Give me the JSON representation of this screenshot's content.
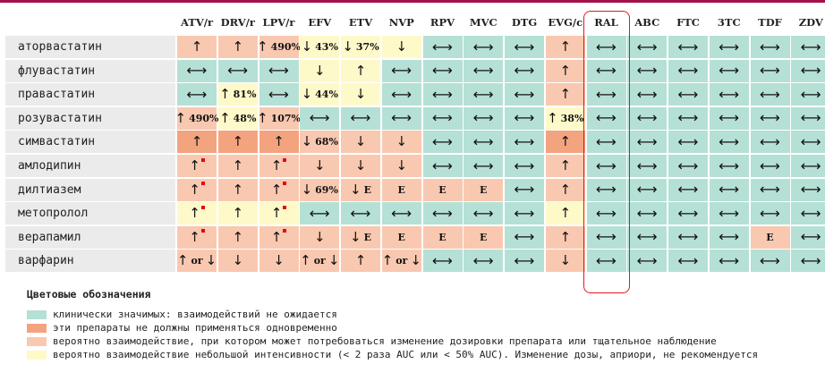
{
  "columns": [
    "ATV/r",
    "DRV/r",
    "LPV/r",
    "EFV",
    "ETV",
    "NVP",
    "RPV",
    "MVC",
    "DTG",
    "EVG/c",
    "RAL",
    "ABC",
    "FTC",
    "3TC",
    "TDF",
    "ZDV"
  ],
  "highlighted_column": "RAL",
  "colors": {
    "green": "#b5e0d6",
    "dark": "#f4a37f",
    "orange": "#f9c8b0",
    "yellow": "#fef9c9",
    "highlight_border": "#e1171e",
    "red_marker": "#e30613"
  },
  "rows": [
    {
      "label": "аторвастатин",
      "cells": [
        {
          "c": "orange",
          "a": "up"
        },
        {
          "c": "orange",
          "a": "up"
        },
        {
          "c": "orange",
          "a": "up",
          "t": "490%"
        },
        {
          "c": "yellow",
          "a": "down",
          "t": "43%"
        },
        {
          "c": "yellow",
          "a": "down",
          "t": "37%"
        },
        {
          "c": "yellow",
          "a": "down"
        },
        {
          "c": "green",
          "a": "lr"
        },
        {
          "c": "green",
          "a": "lr"
        },
        {
          "c": "green",
          "a": "lr"
        },
        {
          "c": "orange",
          "a": "up"
        },
        {
          "c": "green",
          "a": "lr"
        },
        {
          "c": "green",
          "a": "lr"
        },
        {
          "c": "green",
          "a": "lr"
        },
        {
          "c": "green",
          "a": "lr"
        },
        {
          "c": "green",
          "a": "lr"
        },
        {
          "c": "green",
          "a": "lr"
        }
      ]
    },
    {
      "label": "флувастатин",
      "cells": [
        {
          "c": "green",
          "a": "lr"
        },
        {
          "c": "green",
          "a": "lr"
        },
        {
          "c": "green",
          "a": "lr"
        },
        {
          "c": "yellow",
          "a": "down"
        },
        {
          "c": "yellow",
          "a": "up"
        },
        {
          "c": "green",
          "a": "lr"
        },
        {
          "c": "green",
          "a": "lr"
        },
        {
          "c": "green",
          "a": "lr"
        },
        {
          "c": "green",
          "a": "lr"
        },
        {
          "c": "orange",
          "a": "up"
        },
        {
          "c": "green",
          "a": "lr"
        },
        {
          "c": "green",
          "a": "lr"
        },
        {
          "c": "green",
          "a": "lr"
        },
        {
          "c": "green",
          "a": "lr"
        },
        {
          "c": "green",
          "a": "lr"
        },
        {
          "c": "green",
          "a": "lr"
        }
      ]
    },
    {
      "label": "правастатин",
      "cells": [
        {
          "c": "green",
          "a": "lr"
        },
        {
          "c": "yellow",
          "a": "up",
          "t": "81%"
        },
        {
          "c": "green",
          "a": "lr"
        },
        {
          "c": "yellow",
          "a": "down",
          "t": "44%"
        },
        {
          "c": "yellow",
          "a": "down"
        },
        {
          "c": "green",
          "a": "lr"
        },
        {
          "c": "green",
          "a": "lr"
        },
        {
          "c": "green",
          "a": "lr"
        },
        {
          "c": "green",
          "a": "lr"
        },
        {
          "c": "orange",
          "a": "up"
        },
        {
          "c": "green",
          "a": "lr"
        },
        {
          "c": "green",
          "a": "lr"
        },
        {
          "c": "green",
          "a": "lr"
        },
        {
          "c": "green",
          "a": "lr"
        },
        {
          "c": "green",
          "a": "lr"
        },
        {
          "c": "green",
          "a": "lr"
        }
      ]
    },
    {
      "label": "розувастатин",
      "cells": [
        {
          "c": "orange",
          "a": "up",
          "t": "490%"
        },
        {
          "c": "yellow",
          "a": "up",
          "t": "48%"
        },
        {
          "c": "orange",
          "a": "up",
          "t": "107%"
        },
        {
          "c": "green",
          "a": "lr"
        },
        {
          "c": "green",
          "a": "lr"
        },
        {
          "c": "green",
          "a": "lr"
        },
        {
          "c": "green",
          "a": "lr"
        },
        {
          "c": "green",
          "a": "lr"
        },
        {
          "c": "green",
          "a": "lr"
        },
        {
          "c": "yellow",
          "a": "up",
          "t": "38%"
        },
        {
          "c": "green",
          "a": "lr"
        },
        {
          "c": "green",
          "a": "lr"
        },
        {
          "c": "green",
          "a": "lr"
        },
        {
          "c": "green",
          "a": "lr"
        },
        {
          "c": "green",
          "a": "lr"
        },
        {
          "c": "green",
          "a": "lr"
        }
      ]
    },
    {
      "label": "симвастатин",
      "cells": [
        {
          "c": "dark",
          "a": "up"
        },
        {
          "c": "dark",
          "a": "up"
        },
        {
          "c": "dark",
          "a": "up"
        },
        {
          "c": "orange",
          "a": "down",
          "t": "68%"
        },
        {
          "c": "orange",
          "a": "down"
        },
        {
          "c": "orange",
          "a": "down"
        },
        {
          "c": "green",
          "a": "lr"
        },
        {
          "c": "green",
          "a": "lr"
        },
        {
          "c": "green",
          "a": "lr"
        },
        {
          "c": "dark",
          "a": "up"
        },
        {
          "c": "green",
          "a": "lr"
        },
        {
          "c": "green",
          "a": "lr"
        },
        {
          "c": "green",
          "a": "lr"
        },
        {
          "c": "green",
          "a": "lr"
        },
        {
          "c": "green",
          "a": "lr"
        },
        {
          "c": "green",
          "a": "lr"
        }
      ]
    },
    {
      "label": "амлодипин",
      "cells": [
        {
          "c": "orange",
          "a": "up",
          "red": true
        },
        {
          "c": "orange",
          "a": "up"
        },
        {
          "c": "orange",
          "a": "up",
          "red": true
        },
        {
          "c": "orange",
          "a": "down"
        },
        {
          "c": "orange",
          "a": "down"
        },
        {
          "c": "orange",
          "a": "down"
        },
        {
          "c": "green",
          "a": "lr"
        },
        {
          "c": "green",
          "a": "lr"
        },
        {
          "c": "green",
          "a": "lr"
        },
        {
          "c": "orange",
          "a": "up"
        },
        {
          "c": "green",
          "a": "lr"
        },
        {
          "c": "green",
          "a": "lr"
        },
        {
          "c": "green",
          "a": "lr"
        },
        {
          "c": "green",
          "a": "lr"
        },
        {
          "c": "green",
          "a": "lr"
        },
        {
          "c": "green",
          "a": "lr"
        }
      ]
    },
    {
      "label": "дилтиазем",
      "cells": [
        {
          "c": "orange",
          "a": "up",
          "red": true
        },
        {
          "c": "orange",
          "a": "up"
        },
        {
          "c": "orange",
          "a": "up",
          "red": true
        },
        {
          "c": "orange",
          "a": "down",
          "t": "69%"
        },
        {
          "c": "orange",
          "a": "down",
          "t": "E"
        },
        {
          "c": "orange",
          "t": "E"
        },
        {
          "c": "orange",
          "t": "E"
        },
        {
          "c": "orange",
          "t": "E"
        },
        {
          "c": "green",
          "a": "lr"
        },
        {
          "c": "orange",
          "a": "up"
        },
        {
          "c": "green",
          "a": "lr"
        },
        {
          "c": "green",
          "a": "lr"
        },
        {
          "c": "green",
          "a": "lr"
        },
        {
          "c": "green",
          "a": "lr"
        },
        {
          "c": "green",
          "a": "lr"
        },
        {
          "c": "green",
          "a": "lr"
        }
      ]
    },
    {
      "label": "метопролол",
      "cells": [
        {
          "c": "yellow",
          "a": "up",
          "red": true
        },
        {
          "c": "yellow",
          "a": "up"
        },
        {
          "c": "yellow",
          "a": "up",
          "red": true
        },
        {
          "c": "green",
          "a": "lr"
        },
        {
          "c": "green",
          "a": "lr"
        },
        {
          "c": "green",
          "a": "lr"
        },
        {
          "c": "green",
          "a": "lr"
        },
        {
          "c": "green",
          "a": "lr"
        },
        {
          "c": "green",
          "a": "lr"
        },
        {
          "c": "yellow",
          "a": "up"
        },
        {
          "c": "green",
          "a": "lr"
        },
        {
          "c": "green",
          "a": "lr"
        },
        {
          "c": "green",
          "a": "lr"
        },
        {
          "c": "green",
          "a": "lr"
        },
        {
          "c": "green",
          "a": "lr"
        },
        {
          "c": "green",
          "a": "lr"
        }
      ]
    },
    {
      "label": "верапамил",
      "cells": [
        {
          "c": "orange",
          "a": "up",
          "red": true
        },
        {
          "c": "orange",
          "a": "up"
        },
        {
          "c": "orange",
          "a": "up",
          "red": true
        },
        {
          "c": "orange",
          "a": "down"
        },
        {
          "c": "orange",
          "a": "down",
          "t": "E"
        },
        {
          "c": "orange",
          "t": "E"
        },
        {
          "c": "orange",
          "t": "E"
        },
        {
          "c": "orange",
          "t": "E"
        },
        {
          "c": "green",
          "a": "lr"
        },
        {
          "c": "orange",
          "a": "up"
        },
        {
          "c": "green",
          "a": "lr"
        },
        {
          "c": "green",
          "a": "lr"
        },
        {
          "c": "green",
          "a": "lr"
        },
        {
          "c": "green",
          "a": "lr"
        },
        {
          "c": "orange",
          "t": "E"
        },
        {
          "c": "green",
          "a": "lr"
        }
      ]
    },
    {
      "label": "варфарин",
      "cells": [
        {
          "c": "orange",
          "a": "updown",
          "t": "or"
        },
        {
          "c": "orange",
          "a": "down"
        },
        {
          "c": "orange",
          "a": "down"
        },
        {
          "c": "orange",
          "a": "updown",
          "t": "or"
        },
        {
          "c": "orange",
          "a": "up"
        },
        {
          "c": "orange",
          "a": "updown",
          "t": "or"
        },
        {
          "c": "green",
          "a": "lr"
        },
        {
          "c": "green",
          "a": "lr"
        },
        {
          "c": "green",
          "a": "lr"
        },
        {
          "c": "orange",
          "a": "down"
        },
        {
          "c": "green",
          "a": "lr"
        },
        {
          "c": "green",
          "a": "lr"
        },
        {
          "c": "green",
          "a": "lr"
        },
        {
          "c": "green",
          "a": "lr"
        },
        {
          "c": "green",
          "a": "lr"
        },
        {
          "c": "green",
          "a": "lr"
        }
      ]
    }
  ],
  "legend": {
    "title": "Цветовые обозначения",
    "items": [
      {
        "color": "green",
        "text": "клинически значимых: взаимодействий не ожидается"
      },
      {
        "color": "dark",
        "text": "эти препараты не должны применяться одновременно"
      },
      {
        "color": "orange",
        "text": "вероятно взаимодействие, при котором может потребоваться изменение дозировки препарата или тщательное наблюдение"
      },
      {
        "color": "yellow",
        "text": "вероятно взаимодействие небольшой интенсивности (< 2 раза AUC или < 50% AUC). Изменение дозы, априори, не рекомендуется"
      }
    ]
  }
}
